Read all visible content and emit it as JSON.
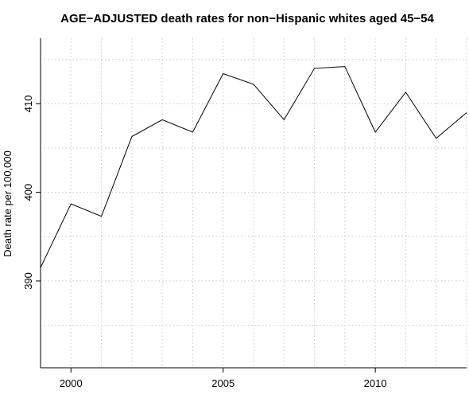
{
  "chart_data": {
    "type": "line",
    "title": "AGE−ADJUSTED death rates for non−Hispanic whites aged 45−54",
    "xlabel": "",
    "ylabel": "Death rate per 100,000",
    "x": [
      1999,
      2000,
      2001,
      2002,
      2003,
      2004,
      2005,
      2006,
      2007,
      2008,
      2009,
      2010,
      2011,
      2012,
      2013
    ],
    "series": [
      {
        "values": [
          391.5,
          398.7,
          397.3,
          406.3,
          408.2,
          406.8,
          413.4,
          412.2,
          408.2,
          414.0,
          414.2,
          406.8,
          411.3,
          406.1,
          409.0
        ]
      }
    ],
    "xlim": [
      1999,
      2013
    ],
    "ylim": [
      380.2,
      417.4
    ],
    "x_ticks": [
      2000,
      2005,
      2010
    ],
    "x_tick_labels": [
      "2000",
      "2005",
      "2010"
    ],
    "y_ticks": [
      390,
      400,
      410
    ],
    "y_tick_labels": [
      "390",
      "400",
      "410"
    ],
    "x_grid": [
      2000,
      2001,
      2002,
      2003,
      2004,
      2005,
      2006,
      2007,
      2008,
      2009,
      2010,
      2011,
      2012,
      2013
    ],
    "y_grid": [
      385,
      390,
      395,
      400,
      405,
      410,
      415
    ],
    "grid": true,
    "legend": "none",
    "line_color": "#000000",
    "grid_color": "#c8c8c8"
  }
}
